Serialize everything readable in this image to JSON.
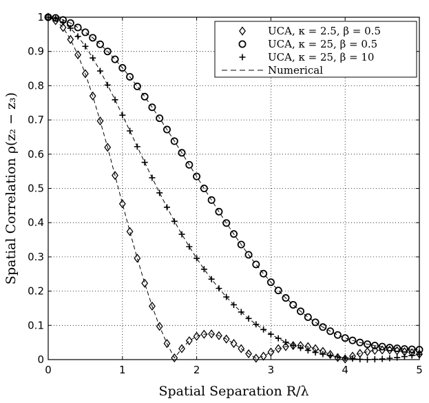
{
  "chart_data": {
    "type": "scatter",
    "title": "",
    "xlabel": "Spatial Separation R/λ",
    "ylabel": "Spatial Correlation ρ(z₂ − z₃)",
    "xlim": [
      0,
      5
    ],
    "ylim": [
      0,
      1
    ],
    "grid": true,
    "legend_position": "top-right",
    "x_ticks": [
      "0",
      "1",
      "2",
      "3",
      "4",
      "5"
    ],
    "y_ticks": [
      "0",
      "0.1",
      "0.2",
      "0.3",
      "0.4",
      "0.5",
      "0.6",
      "0.7",
      "0.8",
      "0.9",
      "1"
    ],
    "x_tick_values": [
      0,
      1,
      2,
      3,
      4,
      5
    ],
    "y_tick_values": [
      0,
      0.1,
      0.2,
      0.3,
      0.4,
      0.5,
      0.6,
      0.7,
      0.8,
      0.9,
      1
    ],
    "series": [
      {
        "name": "UCA, κ = 2.5,  β = 0.5",
        "marker": "diamond",
        "x": [
          0,
          0.1,
          0.2,
          0.3,
          0.4,
          0.5,
          0.6,
          0.7,
          0.8,
          0.9,
          1.0,
          1.1,
          1.2,
          1.3,
          1.4,
          1.5,
          1.6,
          1.7,
          1.8,
          1.9,
          2.0,
          2.1,
          2.2,
          2.3,
          2.4,
          2.5,
          2.6,
          2.7,
          2.8,
          2.9,
          3.0,
          3.1,
          3.2,
          3.3,
          3.4,
          3.5,
          3.6,
          3.7,
          3.8,
          3.9,
          4.0,
          4.1,
          4.2,
          4.3,
          4.4,
          4.5,
          4.6,
          4.7,
          4.8,
          4.9,
          5.0
        ],
        "values": [
          1.0,
          0.99,
          0.97,
          0.935,
          0.89,
          0.835,
          0.77,
          0.697,
          0.62,
          0.538,
          0.455,
          0.374,
          0.296,
          0.223,
          0.156,
          0.097,
          0.047,
          0.005,
          0.032,
          0.055,
          0.068,
          0.074,
          0.075,
          0.07,
          0.06,
          0.047,
          0.032,
          0.017,
          0.004,
          0.01,
          0.022,
          0.032,
          0.038,
          0.041,
          0.041,
          0.038,
          0.032,
          0.024,
          0.015,
          0.006,
          0.002,
          0.01,
          0.018,
          0.023,
          0.027,
          0.028,
          0.028,
          0.026,
          0.023,
          0.02,
          0.016
        ]
      },
      {
        "name": "UCA, κ = 25,  β = 0.5",
        "marker": "circle",
        "x": [
          0,
          0.1,
          0.2,
          0.3,
          0.4,
          0.5,
          0.6,
          0.7,
          0.8,
          0.9,
          1.0,
          1.1,
          1.2,
          1.3,
          1.4,
          1.5,
          1.6,
          1.7,
          1.8,
          1.9,
          2.0,
          2.1,
          2.2,
          2.3,
          2.4,
          2.5,
          2.6,
          2.7,
          2.8,
          2.9,
          3.0,
          3.1,
          3.2,
          3.3,
          3.4,
          3.5,
          3.6,
          3.7,
          3.8,
          3.9,
          4.0,
          4.1,
          4.2,
          4.3,
          4.4,
          4.5,
          4.6,
          4.7,
          4.8,
          4.9,
          5.0
        ],
        "values": [
          1.0,
          0.998,
          0.992,
          0.983,
          0.97,
          0.956,
          0.94,
          0.921,
          0.9,
          0.877,
          0.852,
          0.826,
          0.798,
          0.768,
          0.737,
          0.705,
          0.672,
          0.638,
          0.604,
          0.569,
          0.535,
          0.5,
          0.466,
          0.432,
          0.399,
          0.367,
          0.336,
          0.306,
          0.278,
          0.251,
          0.226,
          0.202,
          0.18,
          0.16,
          0.141,
          0.124,
          0.109,
          0.095,
          0.083,
          0.072,
          0.063,
          0.056,
          0.05,
          0.045,
          0.041,
          0.038,
          0.035,
          0.033,
          0.031,
          0.03,
          0.029
        ]
      },
      {
        "name": "UCA, κ = 25,  β = 10",
        "marker": "plus",
        "x": [
          0,
          0.1,
          0.2,
          0.3,
          0.4,
          0.5,
          0.6,
          0.7,
          0.8,
          0.9,
          1.0,
          1.1,
          1.2,
          1.3,
          1.4,
          1.5,
          1.6,
          1.7,
          1.8,
          1.9,
          2.0,
          2.1,
          2.2,
          2.3,
          2.4,
          2.5,
          2.6,
          2.7,
          2.8,
          2.9,
          3.0,
          3.1,
          3.2,
          3.3,
          3.4,
          3.5,
          3.6,
          3.7,
          3.8,
          3.9,
          4.0,
          4.1,
          4.2,
          4.3,
          4.4,
          4.5,
          4.6,
          4.7,
          4.8,
          4.9,
          5.0
        ],
        "values": [
          1.0,
          0.996,
          0.985,
          0.968,
          0.944,
          0.915,
          0.881,
          0.843,
          0.802,
          0.759,
          0.714,
          0.668,
          0.622,
          0.576,
          0.531,
          0.487,
          0.445,
          0.404,
          0.366,
          0.33,
          0.296,
          0.264,
          0.235,
          0.208,
          0.183,
          0.16,
          0.139,
          0.12,
          0.103,
          0.088,
          0.074,
          0.062,
          0.051,
          0.042,
          0.034,
          0.027,
          0.021,
          0.016,
          0.012,
          0.008,
          0.005,
          0.003,
          0.001,
          0.0,
          0.001,
          0.002,
          0.004,
          0.006,
          0.009,
          0.012,
          0.015
        ]
      }
    ],
    "numerical_label": "Numerical"
  }
}
